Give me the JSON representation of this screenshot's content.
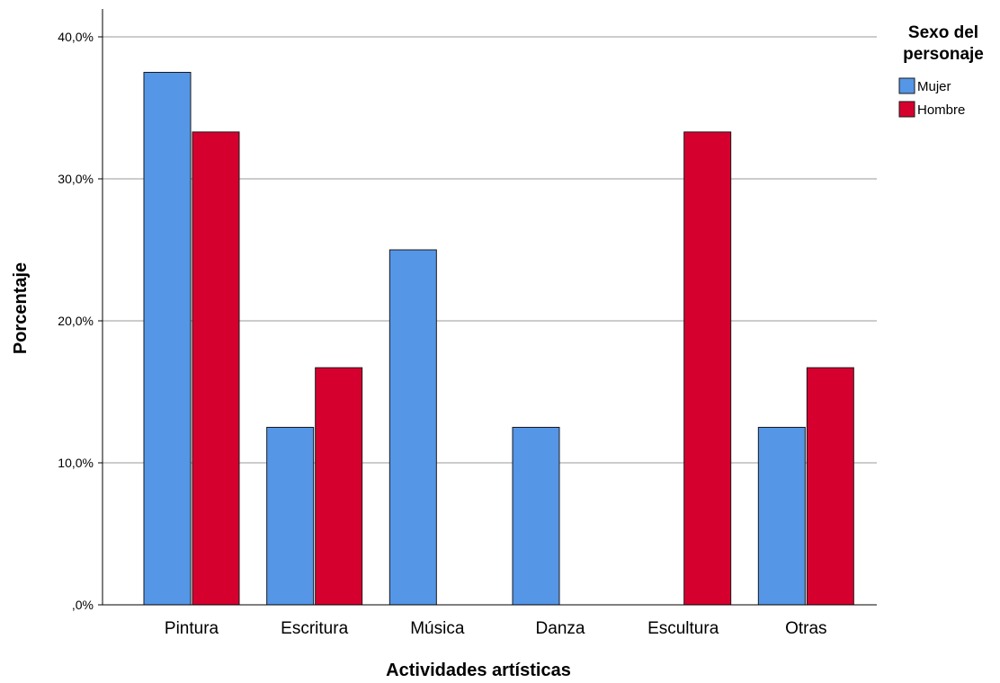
{
  "chart_data": {
    "type": "bar",
    "title": "",
    "xlabel": "Actividades artísticas",
    "ylabel": "Porcentaje",
    "categories": [
      "Pintura",
      "Escritura",
      "Música",
      "Danza",
      "Escultura",
      "Otras"
    ],
    "series": [
      {
        "name": "Mujer",
        "color": "#5596e6",
        "values": [
          37.5,
          12.5,
          25.0,
          12.5,
          0.0,
          12.5
        ]
      },
      {
        "name": "Hombre",
        "color": "#d6002f",
        "values": [
          33.3,
          16.7,
          0.0,
          0.0,
          33.3,
          16.7
        ]
      }
    ],
    "ylim": [
      0,
      42
    ],
    "yticks": [
      0,
      10,
      20,
      30,
      40
    ],
    "ytick_labels": [
      ",0%",
      "10,0%",
      "20,0%",
      "30,0%",
      "40,0%"
    ],
    "grid": true,
    "legend": {
      "title_lines": [
        "Sexo del",
        "personaje"
      ],
      "position": "top-right"
    }
  }
}
